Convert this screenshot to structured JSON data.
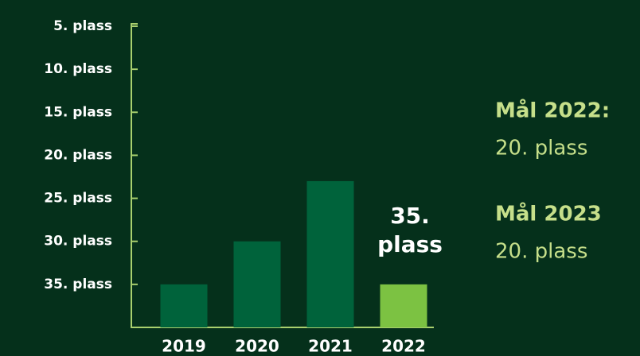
{
  "chart_data": {
    "type": "bar",
    "categories": [
      "2019",
      "2020",
      "2021",
      "2022"
    ],
    "values": [
      35,
      30,
      23,
      35
    ],
    "value_labels": [
      null,
      null,
      null,
      "35. plass"
    ],
    "colors": [
      "#00633b",
      "#00633b",
      "#00633b",
      "#7cc242"
    ],
    "axis_color": "#a9d06e",
    "ylim": [
      40,
      5
    ],
    "yticks": [
      {
        "value": 5,
        "label": "5. plass"
      },
      {
        "value": 10,
        "label": "10. plass"
      },
      {
        "value": 15,
        "label": "15. plass"
      },
      {
        "value": 20,
        "label": "20. plass"
      },
      {
        "value": 25,
        "label": "25. plass"
      },
      {
        "value": 30,
        "label": "30. plass"
      },
      {
        "value": 35,
        "label": "35. plass"
      }
    ],
    "annotations": [
      {
        "title": "Mål 2022:",
        "text": "20. plass"
      },
      {
        "title": "Mål 2023",
        "text": "20. plass"
      }
    ]
  }
}
